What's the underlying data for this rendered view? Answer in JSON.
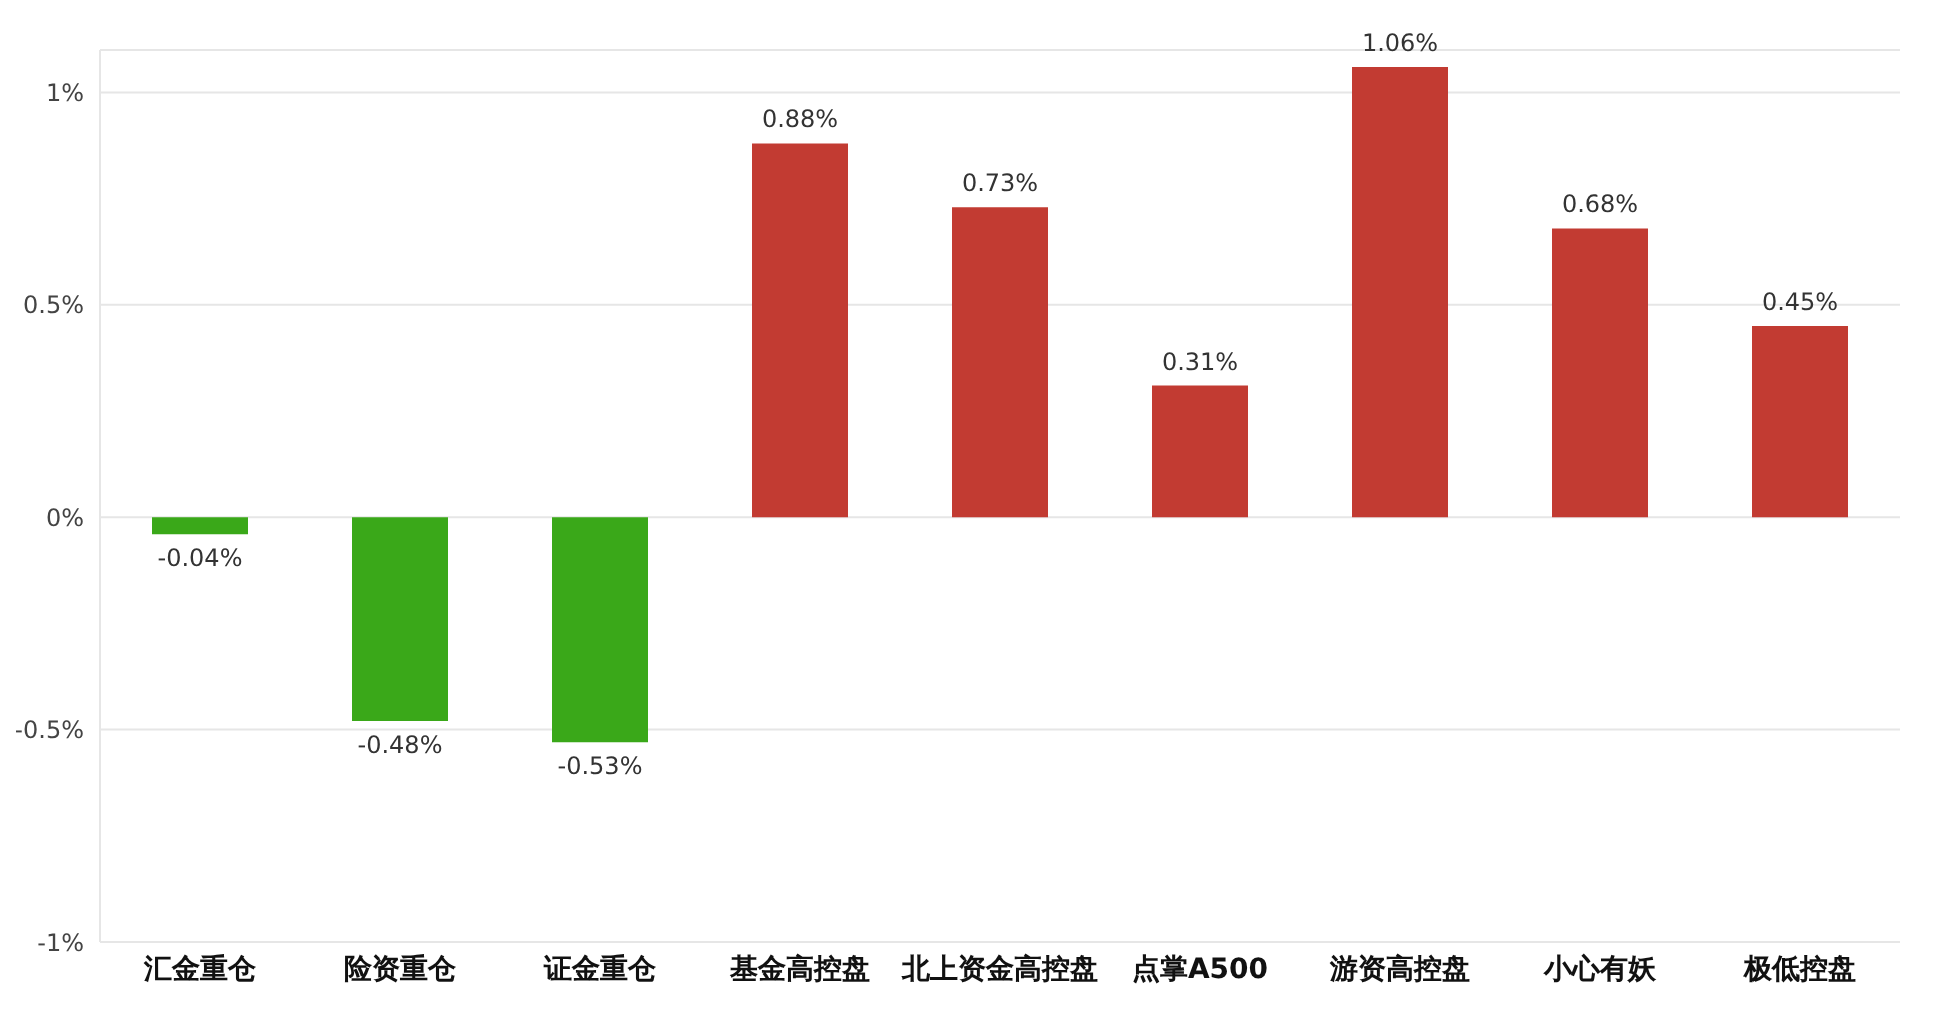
{
  "chart_data": {
    "type": "bar",
    "categories": [
      "汇金重仓",
      "险资重仓",
      "证金重仓",
      "基金高控盘",
      "北上资金高控盘",
      "点掌A500",
      "游资高控盘",
      "小心有妖",
      "极低控盘"
    ],
    "values": [
      -0.04,
      -0.48,
      -0.53,
      0.88,
      0.73,
      0.31,
      1.06,
      0.68,
      0.45
    ],
    "colors": [
      "#3aa819",
      "#3aa819",
      "#3aa819",
      "#c23b32",
      "#c23b32",
      "#c23b32",
      "#c23b32",
      "#c23b32",
      "#c23b32"
    ],
    "value_labels": [
      "-0.04%",
      "-0.48%",
      "-0.53%",
      "0.88%",
      "0.73%",
      "0.31%",
      "1.06%",
      "0.68%",
      "0.45%"
    ],
    "ylim": [
      -1,
      1.1
    ],
    "yticks": [
      {
        "value": -1,
        "label": "-1%"
      },
      {
        "value": -0.5,
        "label": "-0.5%"
      },
      {
        "value": 0,
        "label": "0%"
      },
      {
        "value": 0.5,
        "label": "0.5%"
      },
      {
        "value": 1,
        "label": "1%"
      }
    ],
    "grid": "y",
    "legend": false
  }
}
